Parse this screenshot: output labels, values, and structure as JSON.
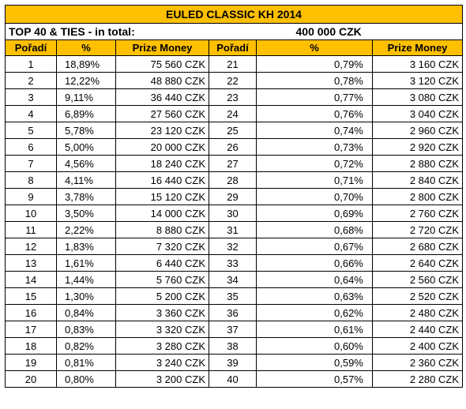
{
  "title": "EULED CLASSIC KH  2014",
  "total_label": "TOP 40 & TIES - in total:",
  "total_value": "400 000 CZK",
  "headers": [
    "Pořadí",
    "%",
    "Prize Money",
    "Pořadí",
    "%",
    "Prize Money"
  ],
  "left_rows": [
    {
      "rank": "1",
      "pct": "18,89%",
      "prize": "75 560 CZK"
    },
    {
      "rank": "2",
      "pct": "12,22%",
      "prize": "48 880 CZK"
    },
    {
      "rank": "3",
      "pct": "9,11%",
      "prize": "36 440 CZK"
    },
    {
      "rank": "4",
      "pct": "6,89%",
      "prize": "27 560 CZK"
    },
    {
      "rank": "5",
      "pct": "5,78%",
      "prize": "23 120 CZK"
    },
    {
      "rank": "6",
      "pct": "5,00%",
      "prize": "20 000 CZK"
    },
    {
      "rank": "7",
      "pct": "4,56%",
      "prize": "18 240 CZK"
    },
    {
      "rank": "8",
      "pct": "4,11%",
      "prize": "16 440 CZK"
    },
    {
      "rank": "9",
      "pct": "3,78%",
      "prize": "15 120 CZK"
    },
    {
      "rank": "10",
      "pct": "3,50%",
      "prize": "14 000 CZK"
    },
    {
      "rank": "11",
      "pct": "2,22%",
      "prize": "8 880 CZK"
    },
    {
      "rank": "12",
      "pct": "1,83%",
      "prize": "7 320 CZK"
    },
    {
      "rank": "13",
      "pct": "1,61%",
      "prize": "6 440 CZK"
    },
    {
      "rank": "14",
      "pct": "1,44%",
      "prize": "5 760 CZK"
    },
    {
      "rank": "15",
      "pct": "1,30%",
      "prize": "5 200 CZK"
    },
    {
      "rank": "16",
      "pct": "0,84%",
      "prize": "3 360 CZK"
    },
    {
      "rank": "17",
      "pct": "0,83%",
      "prize": "3 320 CZK"
    },
    {
      "rank": "18",
      "pct": "0,82%",
      "prize": "3 280 CZK"
    },
    {
      "rank": "19",
      "pct": "0,81%",
      "prize": "3 240 CZK"
    },
    {
      "rank": "20",
      "pct": "0,80%",
      "prize": "3 200 CZK"
    }
  ],
  "right_rows": [
    {
      "rank": "21",
      "pct": "0,79%",
      "prize": "3 160 CZK"
    },
    {
      "rank": "22",
      "pct": "0,78%",
      "prize": "3 120 CZK"
    },
    {
      "rank": "23",
      "pct": "0,77%",
      "prize": "3 080 CZK"
    },
    {
      "rank": "24",
      "pct": "0,76%",
      "prize": "3 040 CZK"
    },
    {
      "rank": "25",
      "pct": "0,74%",
      "prize": "2 960 CZK"
    },
    {
      "rank": "26",
      "pct": "0,73%",
      "prize": "2 920 CZK"
    },
    {
      "rank": "27",
      "pct": "0,72%",
      "prize": "2 880 CZK"
    },
    {
      "rank": "28",
      "pct": "0,71%",
      "prize": "2 840 CZK"
    },
    {
      "rank": "29",
      "pct": "0,70%",
      "prize": "2 800 CZK"
    },
    {
      "rank": "30",
      "pct": "0,69%",
      "prize": "2 760 CZK"
    },
    {
      "rank": "31",
      "pct": "0,68%",
      "prize": "2 720 CZK"
    },
    {
      "rank": "32",
      "pct": "0,67%",
      "prize": "2 680 CZK"
    },
    {
      "rank": "33",
      "pct": "0,66%",
      "prize": "2 640 CZK"
    },
    {
      "rank": "34",
      "pct": "0,64%",
      "prize": "2 560 CZK"
    },
    {
      "rank": "35",
      "pct": "0,63%",
      "prize": "2 520 CZK"
    },
    {
      "rank": "36",
      "pct": "0,62%",
      "prize": "2 480 CZK"
    },
    {
      "rank": "37",
      "pct": "0,61%",
      "prize": "2 440 CZK"
    },
    {
      "rank": "38",
      "pct": "0,60%",
      "prize": "2 400 CZK"
    },
    {
      "rank": "39",
      "pct": "0,59%",
      "prize": "2 360 CZK"
    },
    {
      "rank": "40",
      "pct": "0,57%",
      "prize": "2 280 CZK"
    }
  ],
  "colors": {
    "header_fill": "#ffc000",
    "border": "#000000"
  }
}
